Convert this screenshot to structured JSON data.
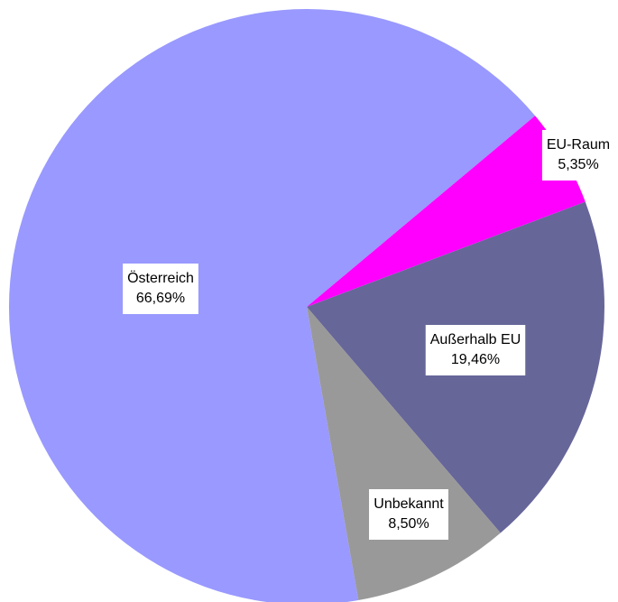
{
  "chart_data": {
    "type": "pie",
    "categories": [
      "Österreich",
      "EU-Raum",
      "Außerhalb EU",
      "Unbekannt"
    ],
    "values": [
      66.69,
      5.35,
      19.46,
      8.5
    ],
    "value_labels": [
      "66,69%",
      "5,35%",
      "19,46%",
      "8,50%"
    ],
    "colors": [
      "#9999ff",
      "#ff00ff",
      "#666699",
      "#999999"
    ]
  }
}
